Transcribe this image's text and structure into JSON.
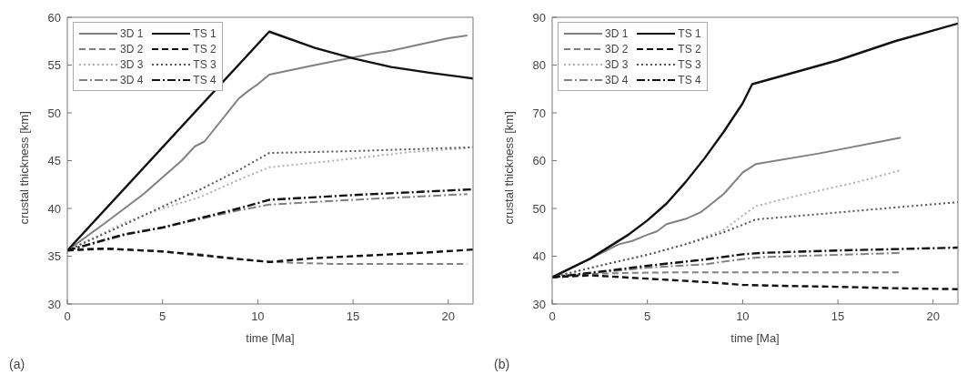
{
  "chart_data": [
    {
      "type": "line",
      "xlabel": "time [Ma]",
      "ylabel": "crustal thickness [km]",
      "annotations": [
        "(a)"
      ],
      "xlim": [
        0,
        21.3
      ],
      "ylim": [
        30,
        60
      ],
      "xticks": [
        0,
        5,
        10,
        15,
        20
      ],
      "yticks": [
        30,
        35,
        40,
        45,
        50,
        55,
        60
      ],
      "grid": false,
      "legend": "top left",
      "marker": "none",
      "series": [
        {
          "name": "3D 1",
          "color": "#808080",
          "line_style": "solid",
          "x": [
            0,
            2,
            4,
            6,
            6.7,
            7.2,
            8,
            9,
            9.5,
            10,
            10.6,
            13,
            16,
            17,
            20,
            21
          ],
          "values": [
            35.6,
            38.5,
            41.5,
            45,
            46.5,
            47,
            49,
            51.5,
            52.3,
            53,
            54,
            55,
            56.2,
            56.5,
            57.8,
            58.1
          ]
        },
        {
          "name": "3D 2",
          "color": "#808080",
          "line_style": "dashed",
          "x": [
            0,
            1,
            3,
            5,
            7,
            9,
            10.6,
            12,
            14,
            21
          ],
          "values": [
            35.6,
            35.8,
            35.7,
            35.5,
            35.2,
            34.7,
            34.4,
            34.3,
            34.2,
            34.2
          ]
        },
        {
          "name": "3D 3",
          "color": "#b0b0b0",
          "line_style": "dotted",
          "x": [
            0,
            3,
            5,
            7,
            9,
            10.6,
            14,
            18,
            21
          ],
          "values": [
            35.6,
            38.5,
            40,
            41.2,
            43,
            44.3,
            45,
            45.9,
            46.3
          ]
        },
        {
          "name": "3D 4",
          "color": "#808080",
          "line_style": "dashdot",
          "x": [
            0,
            3,
            5,
            7,
            9,
            10.6,
            15,
            21
          ],
          "values": [
            35.6,
            37.2,
            38,
            38.9,
            39.8,
            40.4,
            40.9,
            41.5
          ]
        },
        {
          "name": "TS 1",
          "color": "#111111",
          "line_style": "solid",
          "x": [
            0,
            10.6,
            13,
            15,
            17,
            19,
            21.3
          ],
          "values": [
            35.6,
            58.5,
            56.8,
            55.7,
            54.8,
            54.2,
            53.6
          ]
        },
        {
          "name": "TS 2",
          "color": "#111111",
          "line_style": "dashed",
          "x": [
            0,
            2,
            5,
            7,
            9,
            10.6,
            13,
            16,
            19,
            21.3
          ],
          "values": [
            35.6,
            35.8,
            35.5,
            35.1,
            34.7,
            34.4,
            34.8,
            35.1,
            35.4,
            35.7
          ]
        },
        {
          "name": "TS 3",
          "color": "#555555",
          "line_style": "dotted",
          "x": [
            0,
            3,
            5,
            7,
            9,
            10.6,
            15,
            21.3
          ],
          "values": [
            35.6,
            38.3,
            40.2,
            42,
            44,
            45.8,
            46,
            46.4
          ]
        },
        {
          "name": "TS 4",
          "color": "#111111",
          "line_style": "dashdot",
          "x": [
            0,
            3,
            5,
            7,
            9,
            10.6,
            15,
            21.3
          ],
          "values": [
            35.6,
            37.3,
            38,
            39,
            40,
            40.9,
            41.4,
            42
          ]
        }
      ]
    },
    {
      "type": "line",
      "xlabel": "time [Ma]",
      "ylabel": "crustal thickness [km]",
      "annotations": [
        "(b)"
      ],
      "xlim": [
        0,
        21.3
      ],
      "ylim": [
        30,
        90
      ],
      "xticks": [
        0,
        5,
        10,
        15,
        20
      ],
      "yticks": [
        30,
        40,
        50,
        60,
        70,
        80,
        90
      ],
      "grid": false,
      "legend": "top left",
      "marker": "none",
      "series": [
        {
          "name": "3D 1",
          "color": "#808080",
          "line_style": "solid",
          "x": [
            0,
            2,
            3.5,
            4.2,
            5,
            5.5,
            6,
            7,
            7.8,
            9,
            10,
            10.7,
            14,
            18.3
          ],
          "values": [
            35.6,
            39.5,
            42.5,
            43.2,
            44.5,
            45.2,
            46.7,
            47.8,
            49.2,
            53,
            57.5,
            59.3,
            61.5,
            64.8
          ]
        },
        {
          "name": "3D 2",
          "color": "#808080",
          "line_style": "dashed",
          "x": [
            0,
            2,
            4,
            6,
            18.3
          ],
          "values": [
            35.6,
            36.3,
            36.5,
            36.6,
            36.6
          ]
        },
        {
          "name": "3D 3",
          "color": "#b0b0b0",
          "line_style": "dotted",
          "x": [
            0,
            3,
            5,
            7,
            9,
            10,
            10.7,
            13,
            16,
            18.3
          ],
          "values": [
            35.6,
            38.5,
            40.3,
            42.5,
            45.5,
            48.5,
            50.5,
            52.8,
            55.5,
            58
          ]
        },
        {
          "name": "3D 4",
          "color": "#808080",
          "line_style": "dashdot",
          "x": [
            0,
            3,
            5,
            8,
            10,
            11,
            15,
            18.3
          ],
          "values": [
            35.6,
            36.8,
            37.6,
            38.3,
            39.4,
            39.8,
            40.3,
            40.7
          ]
        },
        {
          "name": "TS 1",
          "color": "#111111",
          "line_style": "solid",
          "x": [
            0,
            2,
            4,
            5,
            6,
            7,
            8,
            9,
            10,
            10.5,
            15,
            18,
            21.3
          ],
          "values": [
            35.6,
            39.5,
            44.5,
            47.5,
            51,
            55.5,
            60.5,
            66,
            72,
            76,
            81,
            85,
            88.7
          ]
        },
        {
          "name": "TS 2",
          "color": "#111111",
          "line_style": "dashed",
          "x": [
            0,
            2,
            5,
            8,
            10,
            12,
            15,
            18,
            21.3
          ],
          "values": [
            35.6,
            36,
            35.3,
            34.6,
            34,
            33.8,
            33.6,
            33.3,
            33.1
          ]
        },
        {
          "name": "TS 3",
          "color": "#555555",
          "line_style": "dotted",
          "x": [
            0,
            3,
            5,
            7,
            9,
            10.7,
            14,
            18,
            21.3
          ],
          "values": [
            35.6,
            38.5,
            40.3,
            42.5,
            45,
            47.7,
            48.8,
            50.2,
            51.3
          ]
        },
        {
          "name": "TS 4",
          "color": "#111111",
          "line_style": "dashdot",
          "x": [
            0,
            3,
            5,
            8,
            10,
            11,
            15,
            21.3
          ],
          "values": [
            35.6,
            37,
            38,
            39.3,
            40.4,
            40.7,
            41.2,
            41.8
          ]
        }
      ]
    }
  ]
}
